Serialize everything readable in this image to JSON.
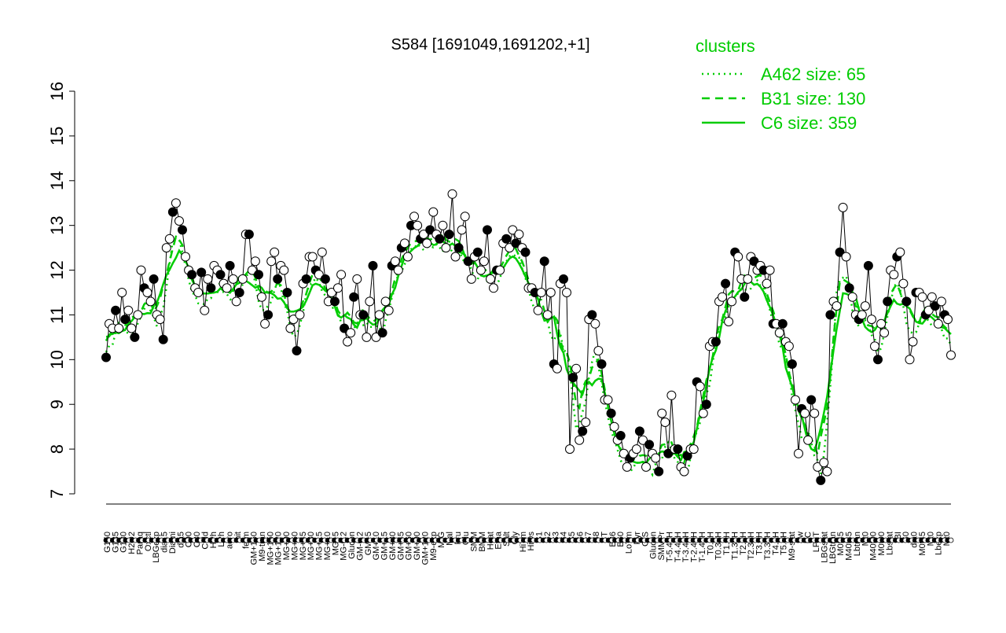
{
  "chart_data": {
    "type": "line",
    "title": "S584 [1691049,1691202,+1]",
    "xlabel": "",
    "ylabel": "",
    "ylim": [
      7,
      16
    ],
    "yticks": [
      7,
      8,
      9,
      10,
      11,
      12,
      13,
      14,
      15,
      16
    ],
    "grid": false,
    "legend": {
      "title": "clusters",
      "position": "top-right",
      "entries": [
        {
          "label": "A462 size: 65",
          "style": "dotted",
          "color": "#00cc00"
        },
        {
          "label": "B31 size: 130",
          "style": "dashed",
          "color": "#00cc00"
        },
        {
          "label": "C6 size: 359",
          "style": "solid",
          "color": "#00cc00"
        }
      ]
    },
    "x_tick_labels": [
      "G150",
      "G135",
      "G180",
      "H2O2",
      "Paraq",
      "Oxctl",
      "LBGexp",
      "dia15",
      "Diami",
      "dia5",
      "C90",
      "C30",
      "Cold",
      "HPh",
      "LPh",
      "aero",
      "nit",
      "ferm",
      "GM+150",
      "M9-tran",
      "MG+150",
      "MG+120",
      "MG+90",
      "MG+60",
      "MG+45",
      "MG+30",
      "MG+15",
      "MG+10",
      "MG+5",
      "MG-0.2",
      "Glucon",
      "GM-0.2",
      "GM+5",
      "GM+10",
      "GM+15",
      "GM+30",
      "GM+45",
      "GM+60",
      "GM+90",
      "GM+120",
      "M9-exp",
      "M/G",
      "Mal",
      "Fru",
      "Glu",
      "SMM",
      "BMM",
      "Heat",
      "Etha",
      "Salt",
      "Gly",
      "HiTm",
      "HiOs",
      "S1",
      "S2",
      "S3",
      "S4",
      "S5",
      "S6",
      "S7",
      "S8",
      "BT",
      "B36",
      "B60",
      "LoTm",
      "Pyr",
      "G/S",
      "Glucon",
      "SMMPr",
      "T-5.40H",
      "T-4.40H",
      "T-3.40H",
      "T-2.40H",
      "T-1.40H",
      "T0.0H",
      "T0.30H",
      "T1.0H",
      "T1.30H",
      "T2.0H",
      "T2.30H",
      "T3.0H",
      "T3.30H",
      "T4.0H",
      "T5.0H",
      "M9-stat",
      "Sw",
      "BC",
      "LPhT",
      "LBGstat",
      "LBGtran",
      "M0t45",
      "M40t45",
      "Lbtran",
      "Mt0",
      "M40t90",
      "M0t90",
      "Lbstat",
      "BI",
      "S0",
      "dia0",
      "M0t45",
      "Mt0",
      "Lbexp",
      "Mt0"
    ],
    "samples_markers": {
      "filled": "condition mean (black dot)",
      "open": "individual replicate (white dot)"
    },
    "series": [
      {
        "name": "S584",
        "color": "#000000",
        "style": "solid",
        "values": [
          10.05,
          10.8,
          10.7,
          11.1,
          10.7,
          11.5,
          10.9,
          11.1,
          10.7,
          10.5,
          11.0,
          12.0,
          11.6,
          11.5,
          11.3,
          11.8,
          11.0,
          10.9,
          10.45,
          12.5,
          12.7,
          13.3,
          13.5,
          13.1,
          12.9,
          12.3,
          12.0,
          11.9,
          11.6,
          11.5,
          11.95,
          11.1,
          11.8,
          11.6,
          12.1,
          12.0,
          11.9,
          11.7,
          11.6,
          12.1,
          11.8,
          11.3,
          11.5,
          11.8,
          12.8,
          12.8,
          12.0,
          12.2,
          11.9,
          11.4,
          10.8,
          11.0,
          12.2,
          12.4,
          11.8,
          12.1,
          12.0,
          11.5,
          10.7,
          10.9,
          10.2,
          11.0,
          11.7,
          11.8,
          12.3,
          12.3,
          12.0,
          11.9,
          12.4,
          11.8,
          11.3,
          11.5,
          11.3,
          11.6,
          11.9,
          10.7,
          10.4,
          10.6,
          11.4,
          11.8,
          11.0,
          11.0,
          10.5,
          11.3,
          12.1,
          10.5,
          11.0,
          10.6,
          11.3,
          11.1,
          12.1,
          12.2,
          12.0,
          12.5,
          12.6,
          12.3,
          13.0,
          13.2,
          13.0,
          12.7,
          12.8,
          12.6,
          12.9,
          13.3,
          12.8,
          12.7,
          13.0,
          12.5,
          12.8,
          13.7,
          12.3,
          12.5,
          12.9,
          13.2,
          12.2,
          11.8,
          12.3,
          12.4,
          12.0,
          12.2,
          12.9,
          11.8,
          11.6,
          12.0,
          12.0,
          12.6,
          12.7,
          12.5,
          12.9,
          12.6,
          12.8,
          12.5,
          12.4,
          11.6,
          11.6,
          11.5,
          11.1,
          11.5,
          12.2,
          11.0,
          11.5,
          9.9,
          9.8,
          11.7,
          11.8,
          11.5,
          8.0,
          9.6,
          9.8,
          8.2,
          8.4,
          8.6,
          10.9,
          11.0,
          10.8,
          10.2,
          9.9,
          9.1,
          9.1,
          8.8,
          8.5,
          8.2,
          8.3,
          7.9,
          7.6,
          7.8,
          7.9,
          8.0,
          8.4,
          8.2,
          7.6,
          8.1,
          7.9,
          7.8,
          7.5,
          8.8,
          8.6,
          7.9,
          9.2,
          8.0,
          8.0,
          7.6,
          7.5,
          7.85,
          8.0,
          8.0,
          9.5,
          9.4,
          8.8,
          9.0,
          10.3,
          10.4,
          10.4,
          11.3,
          11.4,
          11.7,
          10.85,
          11.3,
          12.4,
          12.3,
          11.8,
          11.4,
          11.8,
          12.3,
          12.2,
          12.0,
          12.1,
          12.0,
          11.7,
          12.0,
          10.8,
          10.8,
          10.6,
          10.8,
          10.4,
          10.3,
          9.9,
          9.1,
          7.9,
          8.9,
          8.8,
          8.2,
          9.1,
          8.8,
          7.6,
          7.3,
          7.7,
          7.5,
          11.0,
          11.3,
          11.2,
          12.4,
          13.4,
          12.3,
          11.6,
          11.4,
          11.0,
          10.9,
          11.0,
          11.2,
          12.1,
          10.9,
          10.3,
          10.0,
          10.8,
          10.6,
          11.3,
          12.0,
          11.9,
          12.3,
          12.4,
          11.7,
          11.3,
          10.0,
          10.4,
          11.5,
          11.5,
          11.4,
          11.0,
          11.1,
          11.4,
          11.2,
          10.8,
          11.3,
          11.0,
          10.9,
          10.1
        ]
      }
    ]
  }
}
